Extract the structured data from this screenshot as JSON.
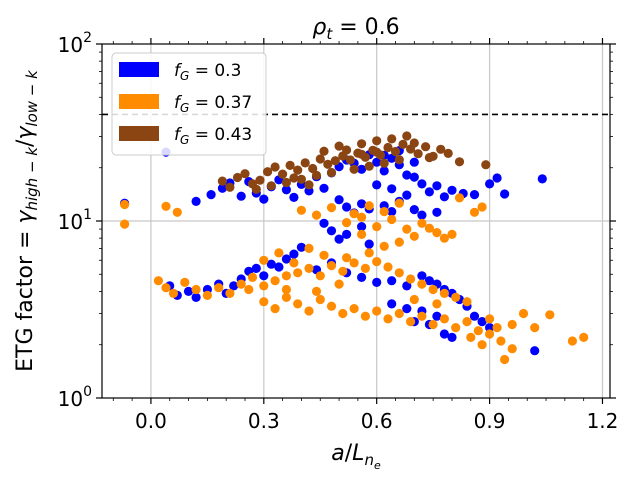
{
  "chart_data": {
    "type": "scatter",
    "title": "ρ_t = 0.6",
    "xlabel": "a/L_ne",
    "ylabel": "ETG factor = γ_high−k/γ_low−k",
    "xlim": [
      -0.13,
      1.22
    ],
    "ylim": [
      1,
      100
    ],
    "yscale": "log",
    "x_ticks": [
      0.0,
      0.3,
      0.6,
      0.9,
      1.2
    ],
    "x_tick_labels": [
      "0.0",
      "0.3",
      "0.6",
      "0.9",
      "1.2"
    ],
    "y_ticks": [
      1,
      10,
      100
    ],
    "y_tick_labels": [
      [
        "10",
        "0"
      ],
      [
        "10",
        "1"
      ],
      [
        "10",
        "2"
      ]
    ],
    "grid": true,
    "threshold_line": {
      "y": 40,
      "style": "dashed",
      "color": "#000000"
    },
    "legend_position": "top-left",
    "series": [
      {
        "name": "f_G = 0.3",
        "legend_parts": [
          "f",
          "G",
          " = 0.3"
        ],
        "color": "#0000ff",
        "points": [
          [
            0.04,
            24.5
          ],
          [
            -0.07,
            12.6
          ],
          [
            0.12,
            12.9
          ],
          [
            0.16,
            14.1
          ],
          [
            0.19,
            15.3
          ],
          [
            0.21,
            16.4
          ],
          [
            0.24,
            13.8
          ],
          [
            0.26,
            16.7
          ],
          [
            0.28,
            14.4
          ],
          [
            0.3,
            13.3
          ],
          [
            0.32,
            15.6
          ],
          [
            0.34,
            17.1
          ],
          [
            0.36,
            15.0
          ],
          [
            0.38,
            13.6
          ],
          [
            0.4,
            16.1
          ],
          [
            0.42,
            14.8
          ],
          [
            0.44,
            17.8
          ],
          [
            0.46,
            15.3
          ],
          [
            0.48,
            18.7
          ],
          [
            0.5,
            20.3
          ],
          [
            0.52,
            22.1
          ],
          [
            0.54,
            21.2
          ],
          [
            0.56,
            19.6
          ],
          [
            0.58,
            23.7
          ],
          [
            0.6,
            21.5
          ],
          [
            0.62,
            19.2
          ],
          [
            0.64,
            22.6
          ],
          [
            0.66,
            20.8
          ],
          [
            0.68,
            18.2
          ],
          [
            0.7,
            17.7
          ],
          [
            0.72,
            16.2
          ],
          [
            0.74,
            14.6
          ],
          [
            0.76,
            15.8
          ],
          [
            0.78,
            13.7
          ],
          [
            0.8,
            14.9
          ],
          [
            0.83,
            14.3
          ],
          [
            0.86,
            14.1
          ],
          [
            0.9,
            16.2
          ],
          [
            0.92,
            17.5
          ],
          [
            0.94,
            14.2
          ],
          [
            1.04,
            17.3
          ],
          [
            0.5,
            13.2
          ],
          [
            0.52,
            12.0
          ],
          [
            0.54,
            11.1
          ],
          [
            0.56,
            12.5
          ],
          [
            0.58,
            11.7
          ],
          [
            0.62,
            12.2
          ],
          [
            0.64,
            11.3
          ],
          [
            0.66,
            12.9
          ],
          [
            0.7,
            11.6
          ],
          [
            0.72,
            10.8
          ],
          [
            0.76,
            11.2
          ],
          [
            0.46,
            9.7
          ],
          [
            0.48,
            8.8
          ],
          [
            0.5,
            7.9
          ],
          [
            0.52,
            8.4
          ],
          [
            0.56,
            9.3
          ],
          [
            0.58,
            7.4
          ],
          [
            0.4,
            7.1
          ],
          [
            0.38,
            6.5
          ],
          [
            0.36,
            6.1
          ],
          [
            0.32,
            5.7
          ],
          [
            0.28,
            5.4
          ],
          [
            0.26,
            5.2
          ],
          [
            0.24,
            4.7
          ],
          [
            0.22,
            4.3
          ],
          [
            0.2,
            3.9
          ],
          [
            0.18,
            4.4
          ],
          [
            0.15,
            4.1
          ],
          [
            0.12,
            3.7
          ],
          [
            0.1,
            4.0
          ],
          [
            0.07,
            3.8
          ],
          [
            0.05,
            4.3
          ],
          [
            0.3,
            4.9
          ],
          [
            0.34,
            5.5
          ],
          [
            0.44,
            5.3
          ],
          [
            0.48,
            5.8
          ],
          [
            0.52,
            5.1
          ],
          [
            0.56,
            4.8
          ],
          [
            0.6,
            4.5
          ],
          [
            0.64,
            4.6
          ],
          [
            0.68,
            4.3
          ],
          [
            0.72,
            4.9
          ],
          [
            0.74,
            4.6
          ],
          [
            0.76,
            4.4
          ],
          [
            0.78,
            4.1
          ],
          [
            0.8,
            3.9
          ],
          [
            0.82,
            3.6
          ],
          [
            0.84,
            3.3
          ],
          [
            0.86,
            2.9
          ],
          [
            0.88,
            2.7
          ],
          [
            0.9,
            2.5
          ],
          [
            0.64,
            3.4
          ],
          [
            0.68,
            3.2
          ],
          [
            0.72,
            3.1
          ],
          [
            0.76,
            2.9
          ],
          [
            0.7,
            2.7
          ],
          [
            0.74,
            2.6
          ],
          [
            0.78,
            2.3
          ],
          [
            0.8,
            2.2
          ],
          [
            1.02,
            1.85
          ],
          [
            0.62,
            23.5
          ],
          [
            0.66,
            25.0
          ],
          [
            0.7,
            21.5
          ],
          [
            0.6,
            16.0
          ],
          [
            0.64,
            15.2
          ],
          [
            0.68,
            14.0
          ]
        ]
      },
      {
        "name": "f_G = 0.37",
        "legend_parts": [
          "f",
          "G",
          " = 0.37"
        ],
        "color": "#ff8c00",
        "points": [
          [
            -0.07,
            12.4
          ],
          [
            -0.07,
            9.6
          ],
          [
            0.04,
            12.1
          ],
          [
            0.07,
            11.2
          ],
          [
            0.02,
            4.6
          ],
          [
            0.04,
            4.2
          ],
          [
            0.06,
            3.9
          ],
          [
            0.09,
            4.5
          ],
          [
            0.12,
            4.1
          ],
          [
            0.15,
            3.8
          ],
          [
            0.18,
            4.2
          ],
          [
            0.21,
            3.9
          ],
          [
            0.24,
            4.4
          ],
          [
            0.27,
            4.8
          ],
          [
            0.3,
            4.3
          ],
          [
            0.33,
            4.6
          ],
          [
            0.36,
            4.1
          ],
          [
            0.39,
            5.1
          ],
          [
            0.42,
            5.4
          ],
          [
            0.45,
            4.9
          ],
          [
            0.48,
            5.6
          ],
          [
            0.51,
            5.2
          ],
          [
            0.54,
            5.8
          ],
          [
            0.57,
            5.4
          ],
          [
            0.6,
            5.9
          ],
          [
            0.63,
            5.5
          ],
          [
            0.66,
            5.1
          ],
          [
            0.69,
            4.7
          ],
          [
            0.72,
            4.4
          ],
          [
            0.75,
            4.1
          ],
          [
            0.78,
            3.9
          ],
          [
            0.81,
            3.7
          ],
          [
            0.84,
            3.5
          ],
          [
            0.3,
            3.5
          ],
          [
            0.33,
            3.2
          ],
          [
            0.36,
            3.7
          ],
          [
            0.39,
            3.4
          ],
          [
            0.42,
            3.1
          ],
          [
            0.45,
            3.6
          ],
          [
            0.48,
            3.3
          ],
          [
            0.51,
            3.0
          ],
          [
            0.54,
            3.2
          ],
          [
            0.57,
            2.9
          ],
          [
            0.6,
            3.1
          ],
          [
            0.63,
            2.8
          ],
          [
            0.66,
            3.0
          ],
          [
            0.69,
            2.7
          ],
          [
            0.72,
            2.9
          ],
          [
            0.75,
            2.6
          ],
          [
            0.78,
            2.8
          ],
          [
            0.81,
            2.5
          ],
          [
            0.84,
            2.7
          ],
          [
            0.87,
            2.4
          ],
          [
            0.9,
            2.3
          ],
          [
            0.93,
            2.1
          ],
          [
            0.96,
            1.9
          ],
          [
            0.85,
            2.2
          ],
          [
            0.88,
            2.0
          ],
          [
            0.94,
            1.65
          ],
          [
            0.99,
            3.0
          ],
          [
            1.06,
            2.95
          ],
          [
            1.12,
            2.1
          ],
          [
            1.15,
            2.2
          ],
          [
            0.96,
            2.6
          ],
          [
            1.02,
            2.5
          ],
          [
            0.4,
            11.5
          ],
          [
            0.44,
            10.8
          ],
          [
            0.48,
            11.9
          ],
          [
            0.52,
            9.8
          ],
          [
            0.56,
            10.5
          ],
          [
            0.6,
            9.3
          ],
          [
            0.64,
            10.2
          ],
          [
            0.68,
            9.0
          ],
          [
            0.72,
            9.7
          ],
          [
            0.76,
            8.6
          ],
          [
            0.78,
            8.0
          ],
          [
            0.7,
            8.2
          ],
          [
            0.66,
            7.6
          ],
          [
            0.62,
            7.2
          ],
          [
            0.58,
            6.6
          ],
          [
            0.74,
            9.1
          ],
          [
            0.8,
            8.4
          ],
          [
            0.62,
            11.3
          ],
          [
            0.66,
            12.6
          ],
          [
            0.58,
            12.2
          ],
          [
            0.54,
            11.0
          ],
          [
            0.56,
            8.4
          ],
          [
            0.52,
            6.2
          ],
          [
            0.46,
            6.4
          ],
          [
            0.42,
            7.0
          ],
          [
            0.38,
            5.8
          ],
          [
            0.34,
            6.6
          ],
          [
            0.3,
            6.0
          ],
          [
            0.86,
            11.2
          ],
          [
            0.88,
            12.0
          ],
          [
            0.82,
            13.5
          ],
          [
            0.5,
            4.4
          ],
          [
            0.44,
            4.0
          ],
          [
            0.36,
            4.9
          ],
          [
            0.26,
            4.1
          ],
          [
            0.9,
            2.8
          ],
          [
            0.92,
            2.5
          ],
          [
            0.76,
            3.4
          ],
          [
            0.7,
            3.6
          ]
        ]
      },
      {
        "name": "f_G = 0.43",
        "legend_parts": [
          "f",
          "G",
          " = 0.43"
        ],
        "color": "#8b4513",
        "points": [
          [
            0.19,
            16.8
          ],
          [
            0.21,
            15.5
          ],
          [
            0.23,
            17.6
          ],
          [
            0.25,
            18.5
          ],
          [
            0.27,
            16.2
          ],
          [
            0.29,
            17.0
          ],
          [
            0.31,
            19.0
          ],
          [
            0.33,
            20.2
          ],
          [
            0.35,
            18.4
          ],
          [
            0.37,
            20.6
          ],
          [
            0.39,
            19.4
          ],
          [
            0.41,
            21.3
          ],
          [
            0.43,
            19.8
          ],
          [
            0.45,
            22.4
          ],
          [
            0.47,
            20.9
          ],
          [
            0.49,
            21.9
          ],
          [
            0.51,
            23.3
          ],
          [
            0.53,
            22.1
          ],
          [
            0.55,
            24.2
          ],
          [
            0.57,
            22.9
          ],
          [
            0.59,
            25.1
          ],
          [
            0.61,
            23.6
          ],
          [
            0.63,
            26.0
          ],
          [
            0.65,
            24.7
          ],
          [
            0.67,
            27.1
          ],
          [
            0.69,
            25.5
          ],
          [
            0.71,
            24.0
          ],
          [
            0.73,
            26.3
          ],
          [
            0.75,
            23.2
          ],
          [
            0.77,
            25.4
          ],
          [
            0.79,
            24.1
          ],
          [
            0.5,
            26.5
          ],
          [
            0.52,
            25.2
          ],
          [
            0.56,
            27.3
          ],
          [
            0.6,
            28.4
          ],
          [
            0.64,
            29.1
          ],
          [
            0.68,
            30.2
          ],
          [
            0.7,
            27.6
          ],
          [
            0.62,
            21.2
          ],
          [
            0.58,
            20.4
          ],
          [
            0.54,
            19.6
          ],
          [
            0.48,
            18.8
          ],
          [
            0.44,
            18.1
          ],
          [
            0.4,
            17.2
          ],
          [
            0.36,
            16.5
          ],
          [
            0.32,
            15.8
          ],
          [
            0.28,
            15.1
          ],
          [
            0.89,
            20.8
          ],
          [
            0.82,
            21.6
          ],
          [
            0.74,
            22.8
          ],
          [
            0.66,
            22.2
          ],
          [
            0.6,
            24.5
          ],
          [
            0.56,
            23.8
          ],
          [
            0.46,
            24.8
          ],
          [
            0.38,
            17.5
          ],
          [
            0.42,
            16.0
          ]
        ]
      }
    ]
  }
}
